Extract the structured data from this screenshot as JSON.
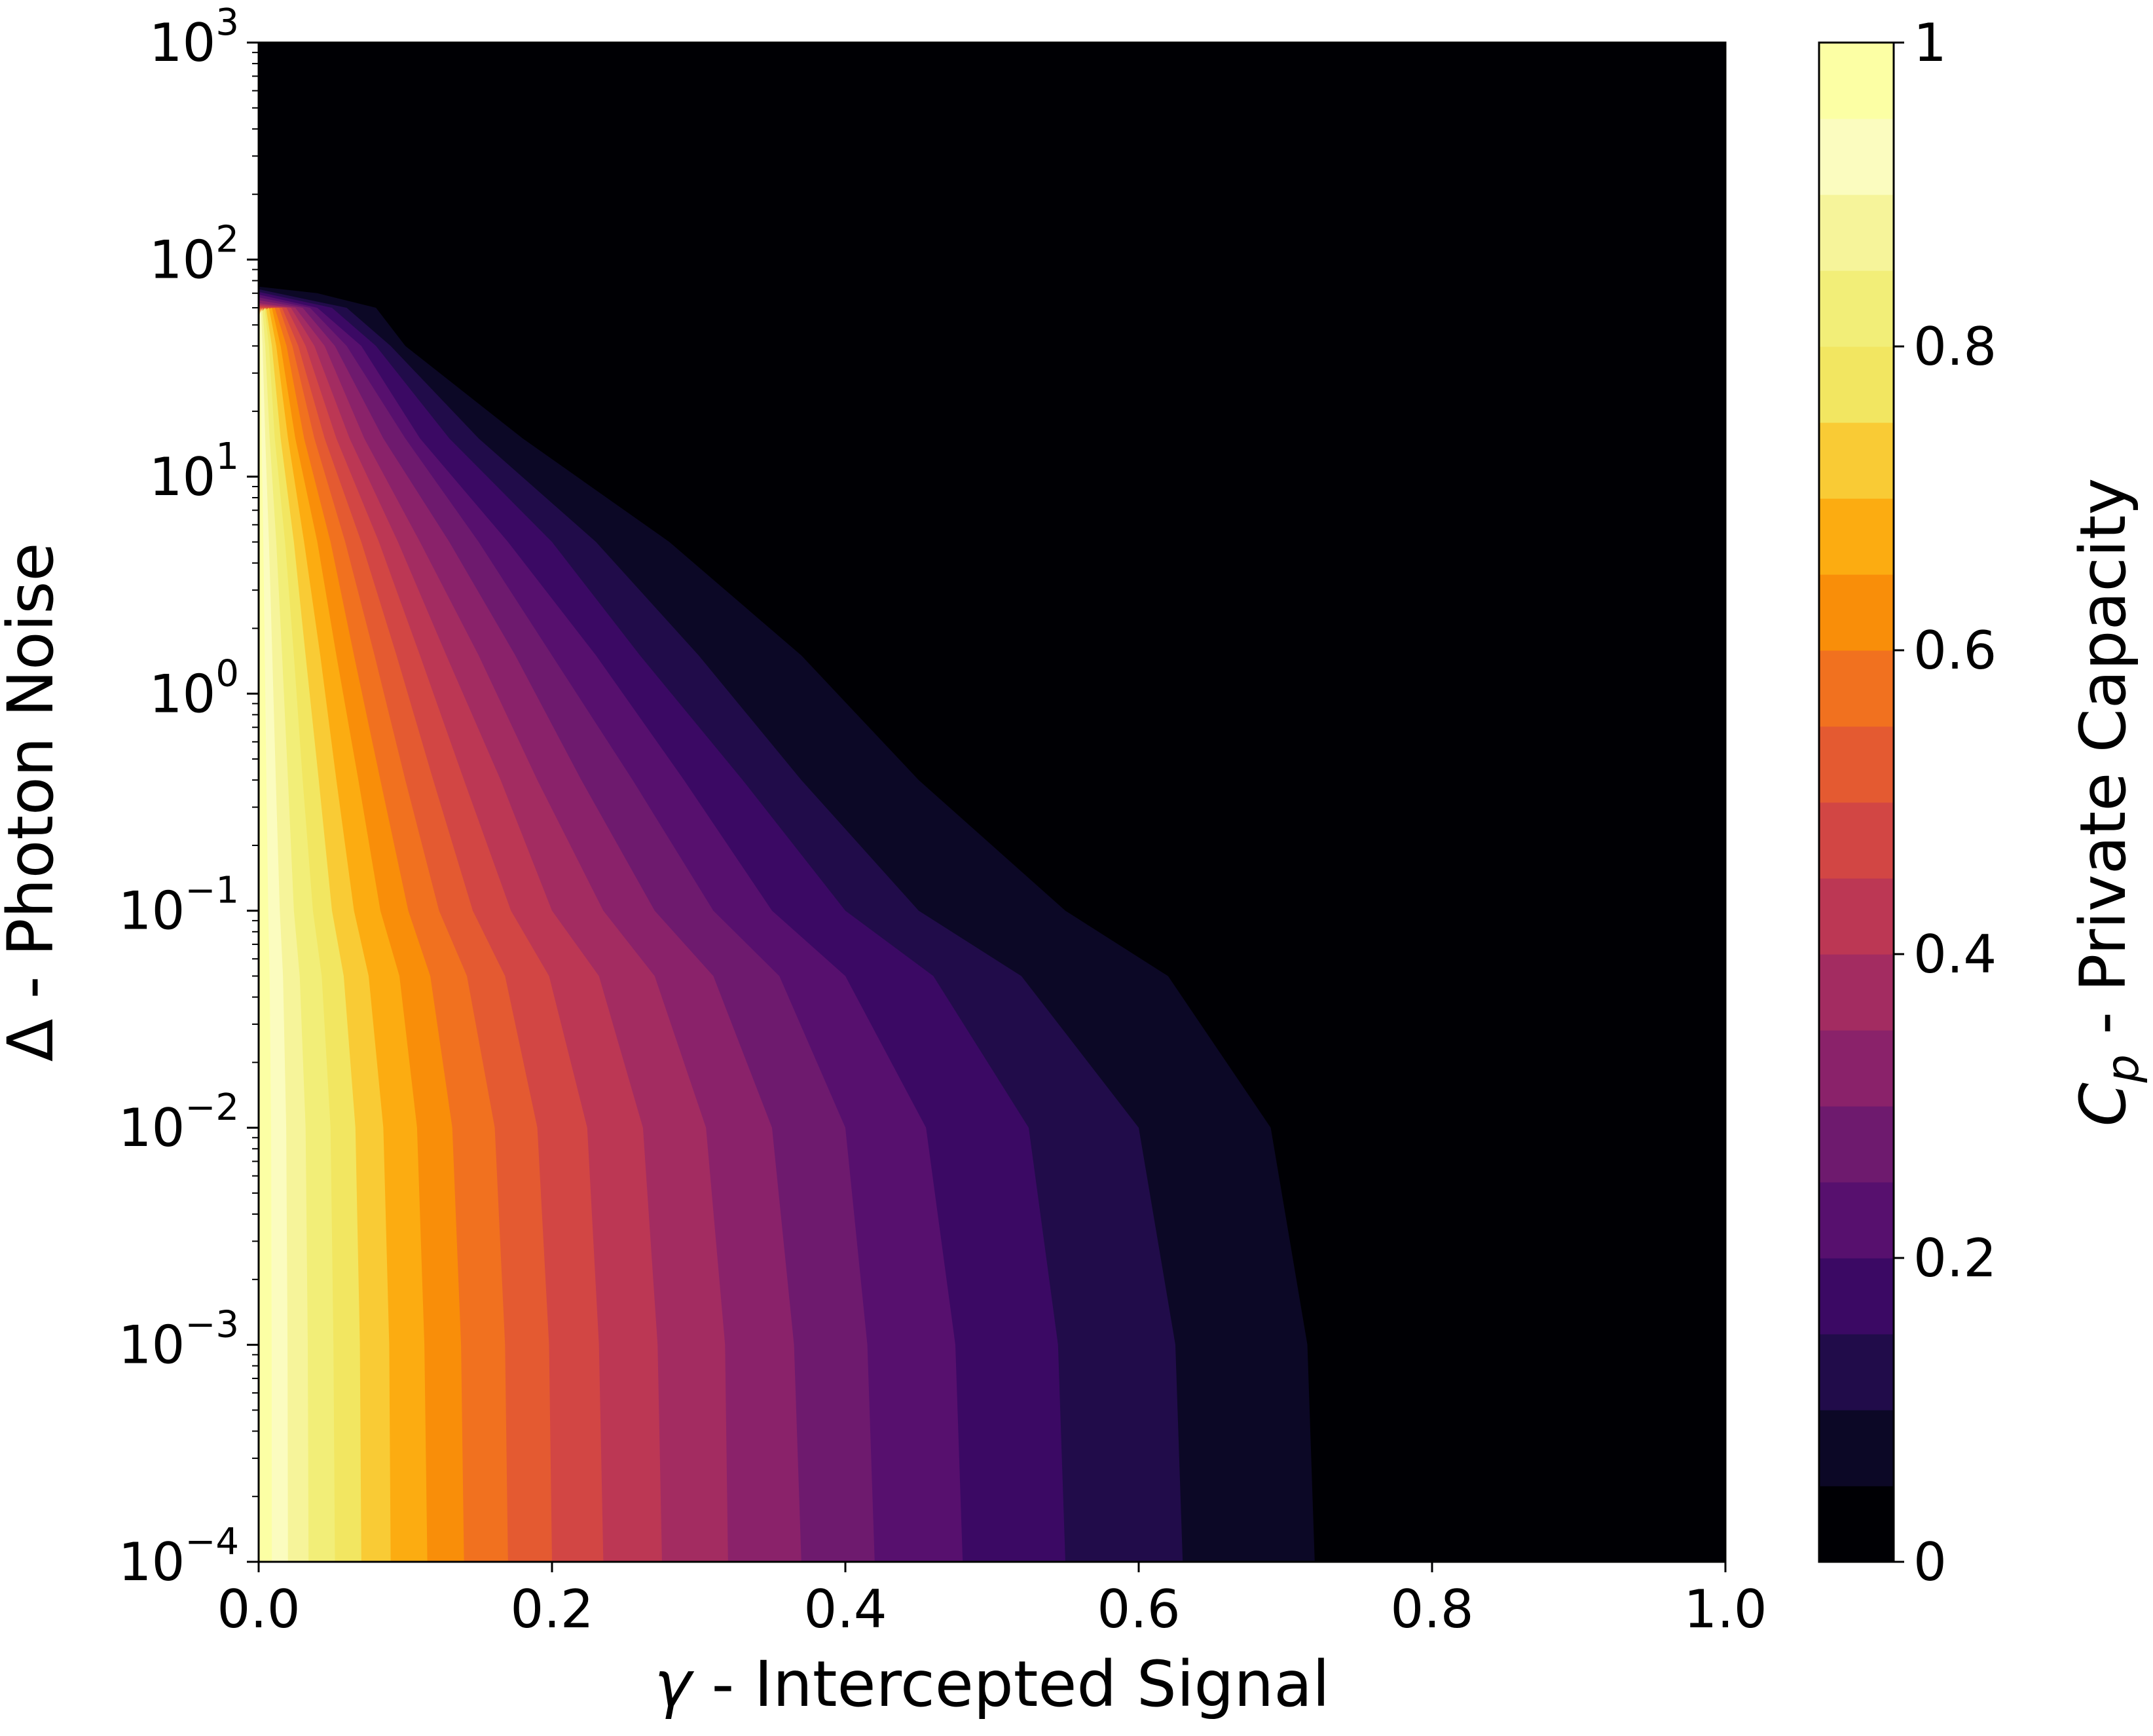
{
  "chart_data": {
    "type": "contour",
    "xlabel_symbol": "γ",
    "xlabel_text": " - Intercepted Signal",
    "ylabel_symbol": "Δ",
    "ylabel_text": " - Photon Noise",
    "colorbar_label_symbol": "C",
    "colorbar_label_subscript": "p",
    "colorbar_label_text": " - Private Capacity",
    "x_scale": "linear",
    "xlim": [
      0.0,
      1.0
    ],
    "x_ticks": [
      0.0,
      0.2,
      0.4,
      0.6,
      0.8,
      1.0
    ],
    "x_tick_labels": [
      "0.0",
      "0.2",
      "0.4",
      "0.6",
      "0.8",
      "1.0"
    ],
    "y_scale": "log",
    "ylim": [
      0.0001,
      1000
    ],
    "y_ticks": [
      {
        "value": 0.0001,
        "base": "10",
        "exponent": "−4"
      },
      {
        "value": 0.001,
        "base": "10",
        "exponent": "−3"
      },
      {
        "value": 0.01,
        "base": "10",
        "exponent": "−2"
      },
      {
        "value": 0.1,
        "base": "10",
        "exponent": "−1"
      },
      {
        "value": 1,
        "base": "10",
        "exponent": "0"
      },
      {
        "value": 10,
        "base": "10",
        "exponent": "1"
      },
      {
        "value": 100,
        "base": "10",
        "exponent": "2"
      },
      {
        "value": 1000,
        "base": "10",
        "exponent": "3"
      }
    ],
    "colormap": "inferno",
    "colorbar_range": [
      0,
      1
    ],
    "colorbar_ticks": [
      0,
      0.2,
      0.4,
      0.6,
      0.8,
      1
    ],
    "colorbar_tick_labels": [
      "0",
      "0.2",
      "0.4",
      "0.6",
      "0.8",
      "1"
    ],
    "levels": [
      0,
      0.05,
      0.1,
      0.15,
      0.2,
      0.25,
      0.3,
      0.35,
      0.4,
      0.45,
      0.5,
      0.55,
      0.6,
      0.65,
      0.7,
      0.75,
      0.8,
      0.85,
      0.9,
      0.95,
      1.0
    ],
    "level_colors": [
      "#000004",
      "#0c0826",
      "#210c4a",
      "#3b0964",
      "#57106e",
      "#6e1a6e",
      "#8a226a",
      "#a32c61",
      "#bc3754",
      "#d24644",
      "#e45a31",
      "#f1711f",
      "#f98e09",
      "#fcac11",
      "#f9cb35",
      "#f2e661",
      "#f2ee78",
      "#f6f49a",
      "#fbfcbf",
      "#fcffa4"
    ],
    "contour_boundaries_note_free": [
      {
        "level": 0.05,
        "points": [
          [
            0.72,
            0.0001
          ],
          [
            0.715,
            0.001
          ],
          [
            0.69,
            0.01
          ],
          [
            0.62,
            0.05
          ],
          [
            0.55,
            0.1
          ],
          [
            0.45,
            0.4
          ],
          [
            0.37,
            1.5
          ],
          [
            0.28,
            5
          ],
          [
            0.18,
            15
          ],
          [
            0.1,
            40
          ],
          [
            0.08,
            60
          ],
          [
            0.04,
            70
          ],
          [
            0.0,
            75
          ]
        ]
      },
      {
        "level": 0.1,
        "points": [
          [
            0.63,
            0.0001
          ],
          [
            0.625,
            0.001
          ],
          [
            0.6,
            0.01
          ],
          [
            0.52,
            0.05
          ],
          [
            0.45,
            0.1
          ],
          [
            0.37,
            0.4
          ],
          [
            0.3,
            1.5
          ],
          [
            0.23,
            5
          ],
          [
            0.15,
            15
          ],
          [
            0.09,
            40
          ],
          [
            0.06,
            60
          ],
          [
            0.0,
            73
          ]
        ]
      },
      {
        "level": 0.15,
        "points": [
          [
            0.55,
            0.0001
          ],
          [
            0.545,
            0.001
          ],
          [
            0.525,
            0.01
          ],
          [
            0.46,
            0.05
          ],
          [
            0.4,
            0.1
          ],
          [
            0.33,
            0.4
          ],
          [
            0.26,
            1.5
          ],
          [
            0.2,
            5
          ],
          [
            0.13,
            15
          ],
          [
            0.08,
            40
          ],
          [
            0.05,
            60
          ],
          [
            0.0,
            71
          ]
        ]
      },
      {
        "level": 0.2,
        "points": [
          [
            0.48,
            0.0001
          ],
          [
            0.475,
            0.001
          ],
          [
            0.455,
            0.01
          ],
          [
            0.4,
            0.05
          ],
          [
            0.35,
            0.1
          ],
          [
            0.29,
            0.4
          ],
          [
            0.23,
            1.5
          ],
          [
            0.17,
            5
          ],
          [
            0.11,
            15
          ],
          [
            0.07,
            40
          ],
          [
            0.04,
            60
          ],
          [
            0.0,
            69
          ]
        ]
      },
      {
        "level": 0.25,
        "points": [
          [
            0.42,
            0.0001
          ],
          [
            0.415,
            0.001
          ],
          [
            0.4,
            0.01
          ],
          [
            0.355,
            0.05
          ],
          [
            0.31,
            0.1
          ],
          [
            0.255,
            0.4
          ],
          [
            0.2,
            1.5
          ],
          [
            0.15,
            5
          ],
          [
            0.1,
            15
          ],
          [
            0.06,
            40
          ],
          [
            0.035,
            60
          ],
          [
            0.0,
            67
          ]
        ]
      },
      {
        "level": 0.3,
        "points": [
          [
            0.37,
            0.0001
          ],
          [
            0.365,
            0.001
          ],
          [
            0.35,
            0.01
          ],
          [
            0.31,
            0.05
          ],
          [
            0.27,
            0.1
          ],
          [
            0.22,
            0.4
          ],
          [
            0.175,
            1.5
          ],
          [
            0.13,
            5
          ],
          [
            0.085,
            15
          ],
          [
            0.052,
            40
          ],
          [
            0.03,
            60
          ],
          [
            0.0,
            65
          ]
        ]
      },
      {
        "level": 0.35,
        "points": [
          [
            0.32,
            0.0001
          ],
          [
            0.318,
            0.001
          ],
          [
            0.305,
            0.01
          ],
          [
            0.27,
            0.05
          ],
          [
            0.235,
            0.1
          ],
          [
            0.19,
            0.4
          ],
          [
            0.15,
            1.5
          ],
          [
            0.11,
            5
          ],
          [
            0.072,
            15
          ],
          [
            0.045,
            40
          ],
          [
            0.025,
            60
          ],
          [
            0.0,
            63
          ]
        ]
      },
      {
        "level": 0.4,
        "points": [
          [
            0.275,
            0.0001
          ],
          [
            0.272,
            0.001
          ],
          [
            0.262,
            0.01
          ],
          [
            0.232,
            0.05
          ],
          [
            0.2,
            0.1
          ],
          [
            0.165,
            0.4
          ],
          [
            0.128,
            1.5
          ],
          [
            0.095,
            5
          ],
          [
            0.062,
            15
          ],
          [
            0.038,
            40
          ],
          [
            0.022,
            60
          ],
          [
            0.0,
            62
          ]
        ]
      },
      {
        "level": 0.45,
        "points": [
          [
            0.235,
            0.0001
          ],
          [
            0.232,
            0.001
          ],
          [
            0.224,
            0.01
          ],
          [
            0.198,
            0.05
          ],
          [
            0.172,
            0.1
          ],
          [
            0.14,
            0.4
          ],
          [
            0.11,
            1.5
          ],
          [
            0.082,
            5
          ],
          [
            0.053,
            15
          ],
          [
            0.032,
            40
          ],
          [
            0.019,
            60
          ],
          [
            0.0,
            61
          ]
        ]
      },
      {
        "level": 0.5,
        "points": [
          [
            0.2,
            0.0001
          ],
          [
            0.198,
            0.001
          ],
          [
            0.19,
            0.01
          ],
          [
            0.168,
            0.05
          ],
          [
            0.146,
            0.1
          ],
          [
            0.119,
            0.4
          ],
          [
            0.094,
            1.5
          ],
          [
            0.07,
            5
          ],
          [
            0.045,
            15
          ],
          [
            0.027,
            40
          ],
          [
            0.016,
            60
          ],
          [
            0.0,
            60
          ]
        ]
      },
      {
        "level": 0.55,
        "points": [
          [
            0.17,
            0.0001
          ],
          [
            0.168,
            0.001
          ],
          [
            0.161,
            0.01
          ],
          [
            0.142,
            0.05
          ],
          [
            0.123,
            0.1
          ],
          [
            0.1,
            0.4
          ],
          [
            0.079,
            1.5
          ],
          [
            0.059,
            5
          ],
          [
            0.038,
            15
          ],
          [
            0.023,
            40
          ],
          [
            0.014,
            60
          ],
          [
            0.0,
            59
          ]
        ]
      },
      {
        "level": 0.6,
        "points": [
          [
            0.14,
            0.0001
          ],
          [
            0.138,
            0.001
          ],
          [
            0.132,
            0.01
          ],
          [
            0.117,
            0.05
          ],
          [
            0.102,
            0.1
          ],
          [
            0.083,
            0.4
          ],
          [
            0.065,
            1.5
          ],
          [
            0.049,
            5
          ],
          [
            0.031,
            15
          ],
          [
            0.019,
            40
          ],
          [
            0.011,
            60
          ],
          [
            0.0,
            58
          ]
        ]
      },
      {
        "level": 0.65,
        "points": [
          [
            0.115,
            0.0001
          ],
          [
            0.113,
            0.001
          ],
          [
            0.108,
            0.01
          ],
          [
            0.096,
            0.05
          ],
          [
            0.083,
            0.1
          ],
          [
            0.068,
            0.4
          ],
          [
            0.053,
            1.5
          ],
          [
            0.04,
            5
          ],
          [
            0.025,
            15
          ],
          [
            0.015,
            40
          ],
          [
            0.009,
            60
          ],
          [
            0.0,
            57
          ]
        ]
      },
      {
        "level": 0.7,
        "points": [
          [
            0.09,
            0.0001
          ],
          [
            0.089,
            0.001
          ],
          [
            0.085,
            0.01
          ],
          [
            0.075,
            0.05
          ],
          [
            0.065,
            0.1
          ],
          [
            0.053,
            0.4
          ],
          [
            0.042,
            1.5
          ],
          [
            0.031,
            5
          ],
          [
            0.02,
            15
          ],
          [
            0.012,
            40
          ],
          [
            0.007,
            60
          ],
          [
            0.0,
            56
          ]
        ]
      },
      {
        "level": 0.75,
        "points": [
          [
            0.07,
            0.0001
          ],
          [
            0.069,
            0.001
          ],
          [
            0.066,
            0.01
          ],
          [
            0.058,
            0.05
          ],
          [
            0.05,
            0.1
          ],
          [
            0.041,
            0.4
          ],
          [
            0.032,
            1.5
          ],
          [
            0.024,
            5
          ],
          [
            0.015,
            15
          ],
          [
            0.009,
            40
          ],
          [
            0.005,
            60
          ],
          [
            0.0,
            55
          ]
        ]
      },
      {
        "level": 0.8,
        "points": [
          [
            0.052,
            0.0001
          ],
          [
            0.051,
            0.001
          ],
          [
            0.049,
            0.01
          ],
          [
            0.043,
            0.05
          ],
          [
            0.037,
            0.1
          ],
          [
            0.03,
            0.4
          ],
          [
            0.024,
            1.5
          ],
          [
            0.018,
            5
          ],
          [
            0.011,
            15
          ],
          [
            0.007,
            40
          ],
          [
            0.004,
            60
          ],
          [
            0.0,
            54
          ]
        ]
      },
      {
        "level": 0.85,
        "points": [
          [
            0.034,
            0.0001
          ],
          [
            0.0335,
            0.001
          ],
          [
            0.032,
            0.01
          ],
          [
            0.028,
            0.05
          ],
          [
            0.024,
            0.1
          ],
          [
            0.02,
            0.4
          ],
          [
            0.016,
            1.5
          ],
          [
            0.012,
            5
          ],
          [
            0.0075,
            15
          ],
          [
            0.0045,
            40
          ],
          [
            0.0025,
            60
          ],
          [
            0.0,
            53
          ]
        ]
      },
      {
        "level": 0.9,
        "points": [
          [
            0.02,
            0.0001
          ],
          [
            0.0197,
            0.001
          ],
          [
            0.0188,
            0.01
          ],
          [
            0.0166,
            0.05
          ],
          [
            0.0144,
            0.1
          ],
          [
            0.0117,
            0.4
          ],
          [
            0.0093,
            1.5
          ],
          [
            0.007,
            5
          ],
          [
            0.0045,
            15
          ],
          [
            0.0027,
            40
          ],
          [
            0.0015,
            60
          ],
          [
            0.0,
            52
          ]
        ]
      },
      {
        "level": 0.95,
        "points": [
          [
            0.009,
            0.0001
          ],
          [
            0.0089,
            0.001
          ],
          [
            0.0085,
            0.01
          ],
          [
            0.0075,
            0.05
          ],
          [
            0.0065,
            0.1
          ],
          [
            0.0053,
            0.4
          ],
          [
            0.0042,
            1.5
          ],
          [
            0.0032,
            5
          ],
          [
            0.002,
            15
          ],
          [
            0.0012,
            40
          ],
          [
            0.0007,
            60
          ],
          [
            0.0,
            51
          ]
        ]
      }
    ]
  }
}
